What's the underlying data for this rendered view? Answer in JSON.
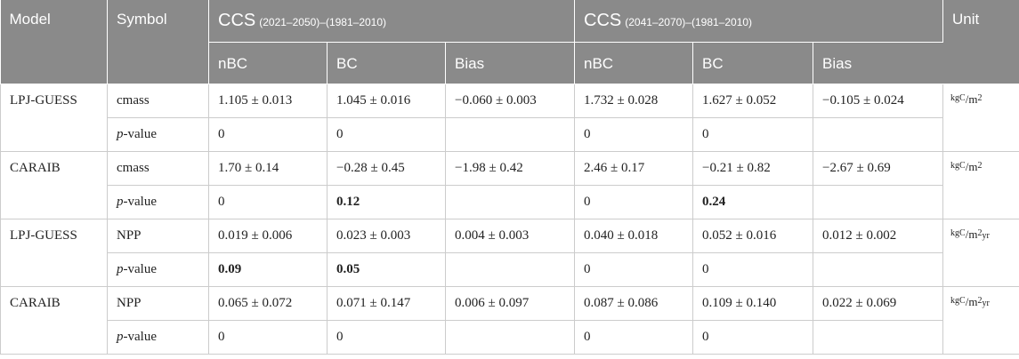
{
  "header": {
    "model": "Model",
    "symbol": "Symbol",
    "group1_main": "CCS",
    "group1_sub": "(2021–2050)–(1981–2010)",
    "group2_main": "CCS",
    "group2_sub": "(2041–2070)–(1981–2010)",
    "unit": "Unit",
    "sub": [
      "nBC",
      "BC",
      "Bias",
      "nBC",
      "BC",
      "Bias"
    ]
  },
  "rows": [
    {
      "model": "LPJ-GUESS",
      "unit": {
        "num": "kgC",
        "slash": "/",
        "den": "m",
        "exp": "2",
        "extra": ""
      },
      "symbol": "cmass",
      "values": [
        "1.105 ± 0.013",
        "1.045 ± 0.016",
        "−0.060 ± 0.003",
        "1.732 ± 0.028",
        "1.627 ± 0.052",
        "−0.105 ± 0.024"
      ],
      "p_label_italic": "p",
      "p_label_rest": "-value",
      "p_values": [
        "0",
        "0",
        "",
        "0",
        "0",
        ""
      ]
    },
    {
      "model": "CARAIB",
      "unit": {
        "num": "kgC",
        "slash": "/",
        "den": "m",
        "exp": "2",
        "extra": ""
      },
      "symbol": "cmass",
      "values": [
        "1.70 ± 0.14",
        "−0.28 ± 0.45",
        "−1.98 ± 0.42",
        "2.46 ± 0.17",
        "−0.21 ± 0.82",
        "−2.67 ± 0.69"
      ],
      "p_label_italic": "p",
      "p_label_rest": "-value",
      "p_values": [
        "0",
        "0.12",
        "",
        "0",
        "0.24",
        ""
      ]
    },
    {
      "model": "LPJ-GUESS",
      "unit": {
        "num": "kgC",
        "slash": "/",
        "den": "m",
        "exp": "2",
        "extra": "yr"
      },
      "symbol": "NPP",
      "values": [
        "0.019 ± 0.006",
        "0.023 ± 0.003",
        "0.004 ± 0.003",
        "0.040 ± 0.018",
        "0.052 ± 0.016",
        "0.012 ± 0.002"
      ],
      "p_label_italic": "p",
      "p_label_rest": "-value",
      "p_values": [
        "0.09",
        "0.05",
        "",
        "0",
        "0",
        ""
      ]
    },
    {
      "model": "CARAIB",
      "unit": {
        "num": "kgC",
        "slash": "/",
        "den": "m",
        "exp": "2",
        "extra": "yr"
      },
      "symbol": "NPP",
      "values": [
        "0.065 ± 0.072",
        "0.071 ± 0.147",
        "0.006 ± 0.097",
        "0.087 ± 0.086",
        "0.109 ± 0.140",
        "0.022 ± 0.069"
      ],
      "p_label_italic": "p",
      "p_label_rest": "-value",
      "p_values": [
        "0",
        "0",
        "",
        "0",
        "0",
        ""
      ]
    }
  ]
}
